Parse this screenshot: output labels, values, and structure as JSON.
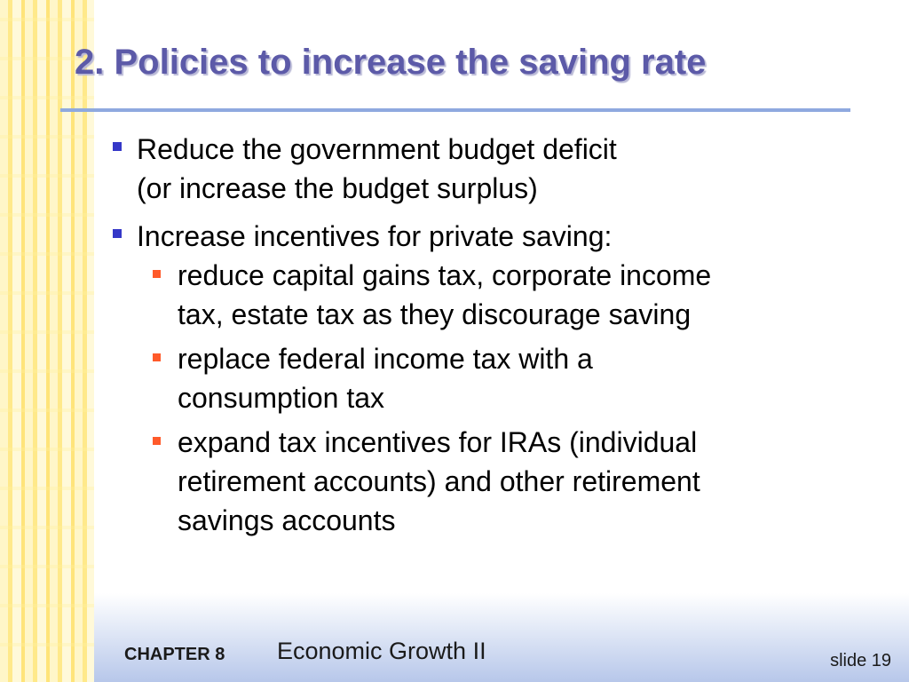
{
  "slide": {
    "title": "2. Policies to increase the saving rate",
    "bullets": [
      {
        "lines": [
          "Reduce the government budget deficit",
          "(or increase the budget surplus)"
        ]
      },
      {
        "lines": [
          "Increase incentives for private saving:"
        ],
        "sub": [
          {
            "lines": [
              "reduce capital gains tax, corporate income",
              "tax, estate tax as they discourage saving"
            ]
          },
          {
            "lines": [
              "replace federal income tax with a",
              "consumption tax"
            ]
          },
          {
            "lines": [
              "expand tax incentives for IRAs (individual",
              "retirement accounts) and other retirement",
              "savings accounts"
            ]
          }
        ]
      }
    ],
    "colors": {
      "title": "#5c5aa8",
      "rule": "#8fa9df",
      "bullet_level1": "#3538c8",
      "bullet_level2": "#ff5a2a",
      "band": "#ffe98a"
    }
  },
  "footer": {
    "chapter": "CHAPTER 8",
    "book_title": "Economic Growth II",
    "slide_number": "slide 19"
  }
}
